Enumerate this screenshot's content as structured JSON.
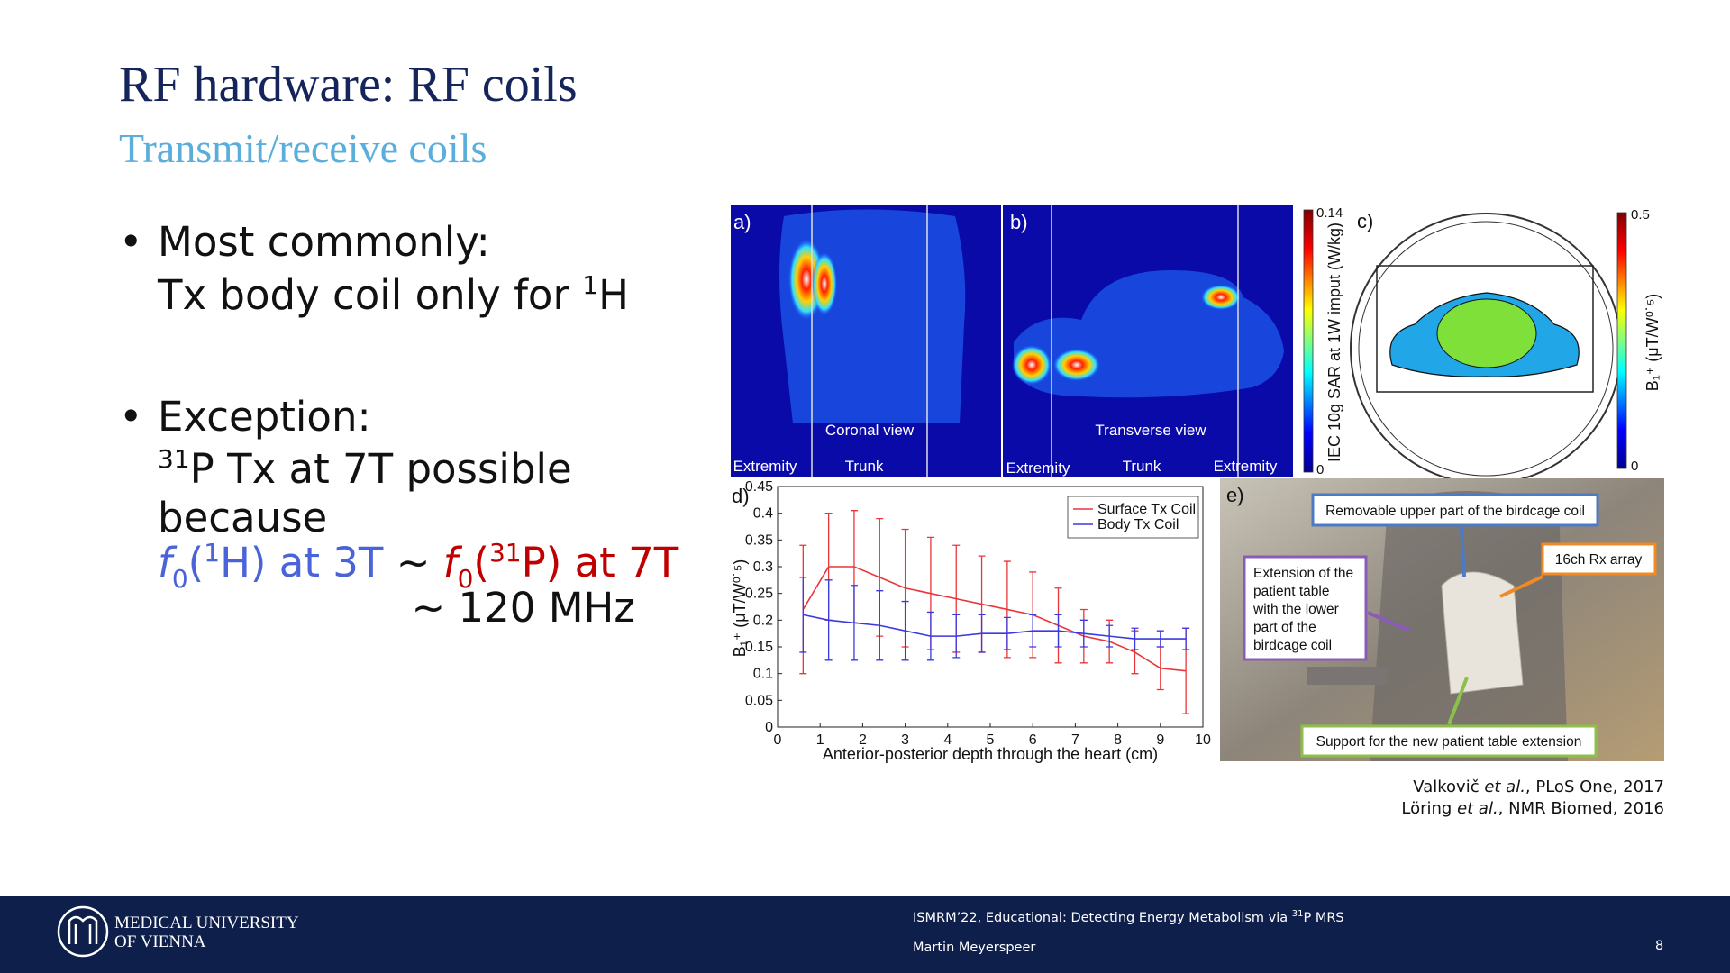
{
  "header": {
    "title": "RF hardware: RF coils",
    "subtitle": "Transmit/receive coils"
  },
  "bullets": [
    {
      "lines": [
        "Most commonly:",
        [
          "Tx body coil only for ",
          "1",
          "H"
        ]
      ]
    },
    {
      "lines": [
        "Exception:",
        [
          "31",
          "P Tx at 7T possible"
        ],
        "because",
        [
          "f",
          "0",
          "(",
          "1",
          "H) at 3T",
          " ~ ",
          "f",
          "0",
          "(",
          "31",
          "P) at 7T"
        ],
        "~ 120 MHz"
      ]
    }
  ],
  "figure_ab": {
    "panel_a": "a)",
    "panel_b": "b)",
    "coronal": "Coronal view",
    "transverse": "Transverse view",
    "regions": [
      "Extremity",
      "Trunk",
      "Extremity",
      "Trunk",
      "Extremity"
    ],
    "colorbar": {
      "max": "0.14",
      "min": "0",
      "label": "IEC 10g SAR at 1W imput (W/kg)"
    }
  },
  "figure_c": {
    "panel": "c)",
    "colorbar": {
      "max": "0.5",
      "min": "0",
      "label": "B₁⁺ (μT/W⁰˙⁵)"
    }
  },
  "figure_d": {
    "type": "line",
    "panel": "d)",
    "x_label": "Anterior-posterior depth through the heart (cm)",
    "y_label": "B₁⁺ (μT/W⁰˙⁵)",
    "x": [
      0.6,
      1.2,
      1.8,
      2.4,
      3.0,
      3.6,
      4.2,
      4.8,
      5.4,
      6.0,
      6.6,
      7.2,
      7.8,
      8.4,
      9.0,
      9.6
    ],
    "series": [
      {
        "name": "Surface Tx Coil",
        "color": "#e8363a",
        "values": [
          0.22,
          0.3,
          0.3,
          0.28,
          0.26,
          0.25,
          0.24,
          0.23,
          0.22,
          0.21,
          0.19,
          0.17,
          0.16,
          0.14,
          0.11,
          0.105
        ],
        "errors": [
          0.12,
          0.1,
          0.105,
          0.11,
          0.11,
          0.105,
          0.1,
          0.09,
          0.09,
          0.08,
          0.07,
          0.05,
          0.04,
          0.04,
          0.04,
          0.08
        ]
      },
      {
        "name": "Body Tx Coil",
        "color": "#3a3ae0",
        "values": [
          0.21,
          0.2,
          0.195,
          0.19,
          0.18,
          0.17,
          0.17,
          0.175,
          0.175,
          0.18,
          0.18,
          0.175,
          0.17,
          0.165,
          0.165,
          0.165
        ],
        "errors": [
          0.07,
          0.075,
          0.07,
          0.065,
          0.055,
          0.045,
          0.04,
          0.035,
          0.03,
          0.03,
          0.03,
          0.025,
          0.02,
          0.02,
          0.015,
          0.02
        ]
      }
    ],
    "xlim": [
      0,
      10
    ],
    "xticks": [
      0,
      1,
      2,
      3,
      4,
      5,
      6,
      7,
      8,
      9,
      10
    ],
    "ylim": [
      0,
      0.45
    ],
    "yticks": [
      0,
      0.05,
      0.1,
      0.15,
      0.2,
      0.25,
      0.3,
      0.35,
      0.4,
      0.45
    ],
    "legend": "upper right"
  },
  "figure_e": {
    "panel": "e)",
    "upper": "Removable upper part of the birdcage coil",
    "rx": "16ch Rx array",
    "extension": [
      "Extension of the",
      "patient table",
      "with the lower",
      "part of the",
      "birdcage coil"
    ],
    "support": "Support for the new patient table extension"
  },
  "citations": [
    [
      "Valkovič ",
      "et al.",
      ", PLoS One, 2017"
    ],
    [
      "Löring ",
      "et al.",
      ", NMR Biomed, 2016"
    ]
  ],
  "footer": {
    "logo": [
      "MEDICAL UNIVERSITY",
      "OF VIENNA"
    ],
    "event": [
      "ISMRM’22, Educational: Detecting Energy Metabolism via ",
      "31",
      "P MRS"
    ],
    "author": "Martin Meyerspeer",
    "page": "8"
  }
}
